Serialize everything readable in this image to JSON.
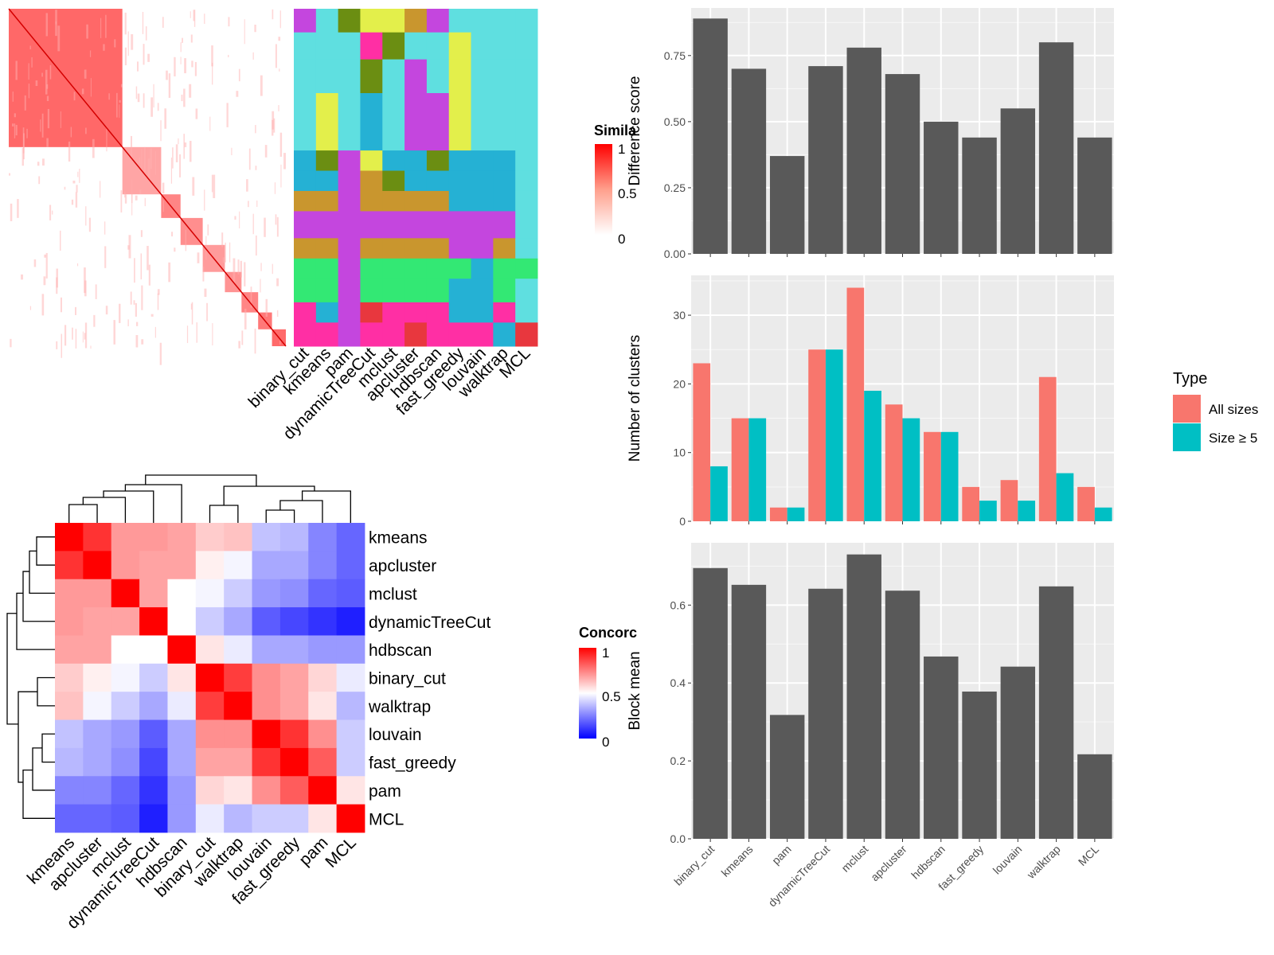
{
  "similarity_panel": {
    "legend_title": "Simila",
    "legend_ticks": [
      "1",
      "0.5",
      "0"
    ],
    "methods": [
      "binary_cut",
      "kmeans",
      "pam",
      "dynamicTreeCut",
      "mclust",
      "apcluster",
      "hdbscan",
      "fast_greedy",
      "louvain",
      "walktrap",
      "MCL"
    ]
  },
  "concordance_panel": {
    "legend_title": "Concorc",
    "legend_ticks": [
      "1",
      "0.5",
      "0"
    ],
    "row_labels": [
      "kmeans",
      "apcluster",
      "mclust",
      "dynamicTreeCut",
      "hdbscan",
      "binary_cut",
      "walktrap",
      "louvain",
      "fast_greedy",
      "pam",
      "MCL"
    ],
    "col_labels": [
      "kmeans",
      "apcluster",
      "mclust",
      "dynamicTreeCut",
      "hdbscan",
      "binary_cut",
      "walktrap",
      "louvain",
      "fast_greedy",
      "pam",
      "MCL"
    ]
  },
  "bar_panels": {
    "legend_title": "Type",
    "legend_items": [
      {
        "label": "All sizes",
        "color": "#f8766d"
      },
      {
        "label": "Size ≥ 5",
        "color": "#00bfc4"
      }
    ]
  },
  "chart_data": [
    {
      "type": "heatmap",
      "title": "",
      "labels": [
        "kmeans",
        "apcluster",
        "mclust",
        "dynamicTreeCut",
        "hdbscan",
        "binary_cut",
        "walktrap",
        "louvain",
        "fast_greedy",
        "pam",
        "MCL"
      ],
      "values": [
        [
          1.0,
          0.9,
          0.7,
          0.7,
          0.68,
          0.6,
          0.62,
          0.38,
          0.36,
          0.26,
          0.2
        ],
        [
          0.9,
          1.0,
          0.7,
          0.68,
          0.68,
          0.53,
          0.48,
          0.33,
          0.33,
          0.26,
          0.2
        ],
        [
          0.7,
          0.7,
          1.0,
          0.68,
          0.5,
          0.48,
          0.4,
          0.3,
          0.28,
          0.2,
          0.18
        ],
        [
          0.7,
          0.68,
          0.68,
          1.0,
          0.5,
          0.4,
          0.33,
          0.18,
          0.14,
          0.1,
          0.06
        ],
        [
          0.68,
          0.68,
          0.5,
          0.5,
          1.0,
          0.55,
          0.46,
          0.33,
          0.33,
          0.3,
          0.3
        ],
        [
          0.6,
          0.53,
          0.48,
          0.4,
          0.55,
          1.0,
          0.88,
          0.72,
          0.68,
          0.58,
          0.46
        ],
        [
          0.62,
          0.48,
          0.4,
          0.33,
          0.46,
          0.88,
          1.0,
          0.72,
          0.68,
          0.55,
          0.36
        ],
        [
          0.38,
          0.33,
          0.3,
          0.18,
          0.33,
          0.72,
          0.72,
          1.0,
          0.9,
          0.72,
          0.4
        ],
        [
          0.36,
          0.33,
          0.28,
          0.14,
          0.33,
          0.68,
          0.68,
          0.9,
          1.0,
          0.82,
          0.4
        ],
        [
          0.26,
          0.26,
          0.2,
          0.1,
          0.3,
          0.58,
          0.55,
          0.72,
          0.82,
          1.0,
          0.55
        ],
        [
          0.2,
          0.2,
          0.18,
          0.06,
          0.3,
          0.46,
          0.36,
          0.4,
          0.4,
          0.55,
          1.0
        ]
      ],
      "legend_title": "Concorc",
      "range": [
        0,
        1
      ]
    },
    {
      "type": "bar",
      "categories": [
        "binary_cut",
        "kmeans",
        "pam",
        "dynamicTreeCut",
        "mclust",
        "apcluster",
        "hdbscan",
        "fast_greedy",
        "louvain",
        "walktrap",
        "MCL"
      ],
      "values": [
        0.89,
        0.7,
        0.37,
        0.71,
        0.78,
        0.68,
        0.5,
        0.44,
        0.55,
        0.8,
        0.44
      ],
      "ylabel": "Difference score",
      "ylim": [
        0,
        0.93
      ],
      "yticks": [
        0.0,
        0.25,
        0.5,
        0.75
      ],
      "ytick_labels": [
        "0.00",
        "0.25",
        "0.50",
        "0.75"
      ],
      "color": "#595959"
    },
    {
      "type": "bar",
      "categories": [
        "binary_cut",
        "kmeans",
        "pam",
        "dynamicTreeCut",
        "mclust",
        "apcluster",
        "hdbscan",
        "fast_greedy",
        "louvain",
        "walktrap",
        "MCL"
      ],
      "series": [
        {
          "name": "All sizes",
          "color": "#f8766d",
          "values": [
            23,
            15,
            2,
            25,
            34,
            17,
            13,
            5,
            6,
            21,
            5
          ]
        },
        {
          "name": "Size ≥ 5",
          "color": "#00bfc4",
          "values": [
            8,
            15,
            2,
            25,
            19,
            15,
            13,
            3,
            3,
            7,
            2
          ]
        }
      ],
      "ylabel": "Number of clusters",
      "ylim": [
        0,
        35.8
      ],
      "yticks": [
        0,
        10,
        20,
        30
      ],
      "ytick_labels": [
        "0",
        "10",
        "20",
        "30"
      ],
      "legend": "right"
    },
    {
      "type": "bar",
      "categories": [
        "binary_cut",
        "kmeans",
        "pam",
        "dynamicTreeCut",
        "mclust",
        "apcluster",
        "hdbscan",
        "fast_greedy",
        "louvain",
        "walktrap",
        "MCL"
      ],
      "values": [
        0.695,
        0.652,
        0.318,
        0.642,
        0.73,
        0.637,
        0.468,
        0.378,
        0.442,
        0.648,
        0.217
      ],
      "ylabel": "Block mean",
      "ylim": [
        0,
        0.76
      ],
      "yticks": [
        0.0,
        0.2,
        0.4,
        0.6
      ],
      "ytick_labels": [
        "0.0",
        "0.2",
        "0.4",
        "0.6"
      ],
      "color": "#595959"
    }
  ]
}
